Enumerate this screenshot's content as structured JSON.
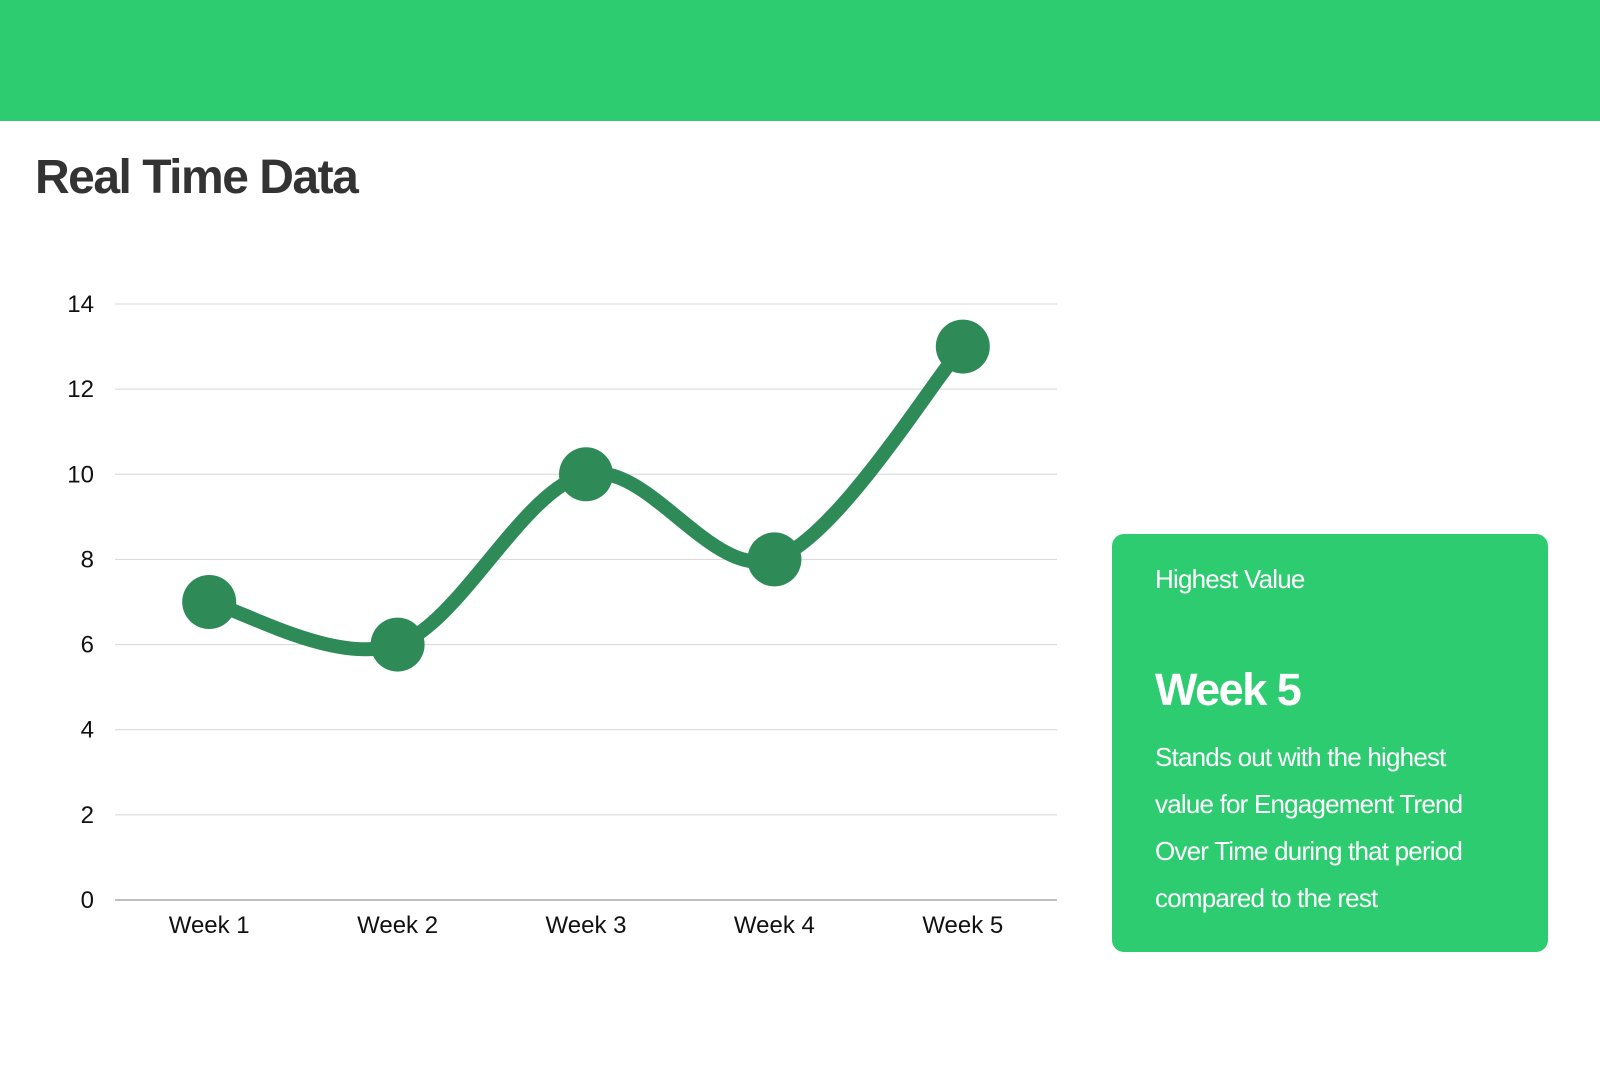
{
  "header": {
    "title": "Real Time Data"
  },
  "chart_data": {
    "type": "line",
    "categories": [
      "Week 1",
      "Week 2",
      "Week 3",
      "Week 4",
      "Week 5"
    ],
    "series": [
      {
        "values": [
          7,
          6,
          10,
          8,
          13
        ],
        "color": "#2e8b57"
      }
    ],
    "yticks": [
      "0",
      "2",
      "4",
      "6",
      "8",
      "10",
      "12",
      "14"
    ],
    "ylim": [
      0,
      14
    ],
    "grid": true,
    "legend": "none",
    "smooth": true
  },
  "card": {
    "label": "Highest Value",
    "highlight": "Week 5",
    "description": "Stands out with the highest value for Engagement Trend Over Time during that period compared to the rest"
  },
  "colors": {
    "banner": "#2ecc71",
    "card": "#2ecc71",
    "line": "#2e8b57",
    "title": "#333333"
  }
}
